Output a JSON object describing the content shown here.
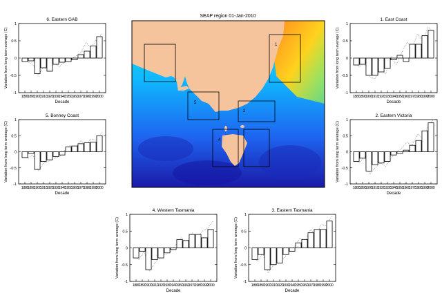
{
  "figure": {
    "map_title": "SEAP region 01-Jan-2010"
  },
  "map_labels": [
    "1",
    "2",
    "4",
    "5"
  ],
  "colors": {
    "bar_fill": "#ffffff",
    "bar_stroke": "#000000",
    "dotted": "#888888",
    "land": "#f6c49c",
    "ocean_deep": "#1a1aa8",
    "ocean_mid": "#1e90ff",
    "ocean_shallow": "#21e0c8"
  },
  "chart_data": [
    {
      "type": "bar",
      "title": "6. Eastern GAB",
      "xlabel": "Decade",
      "ylabel": "Variation from long term average (C)",
      "ylim": [
        -1,
        1
      ],
      "yticks": [
        "-1",
        "-0.5",
        "0",
        "0.5",
        "1"
      ],
      "categories": [
        "1880",
        "1890",
        "1900",
        "1910",
        "1920",
        "1930",
        "1940",
        "1950",
        "1960",
        "1970",
        "1980",
        "1990",
        "2000"
      ],
      "values": [
        -0.1,
        -0.08,
        -0.45,
        -0.28,
        -0.38,
        -0.18,
        -0.12,
        -0.1,
        -0.05,
        0.1,
        0.2,
        0.35,
        0.62
      ],
      "dotted": [
        -0.05,
        -0.1,
        -0.2,
        -0.5,
        -0.25,
        -0.4,
        -0.15,
        -0.25,
        -0.1,
        -0.05,
        0.05,
        0.15,
        0.45,
        0.3,
        0.55,
        0.7
      ]
    },
    {
      "type": "bar",
      "title": "5. Bonney Coast",
      "xlabel": "Decade",
      "ylabel": "Variation from long term average (C)",
      "ylim": [
        -1,
        1
      ],
      "yticks": [
        "-1",
        "-0.5",
        "0",
        "0.5",
        "1"
      ],
      "categories": [
        "1880",
        "1890",
        "1900",
        "1910",
        "1920",
        "1930",
        "1940",
        "1950",
        "1960",
        "1970",
        "1980",
        "1990",
        "2000"
      ],
      "values": [
        -0.18,
        -0.05,
        -0.55,
        -0.3,
        -0.25,
        -0.15,
        -0.1,
        0.15,
        0.18,
        0.25,
        0.28,
        0.3,
        0.5
      ],
      "dotted": [
        -0.1,
        -0.2,
        -0.1,
        -0.6,
        -0.35,
        -0.3,
        -0.2,
        -0.15,
        0.05,
        0.2,
        0.1,
        0.35,
        0.2,
        0.4,
        0.35,
        0.6
      ]
    },
    {
      "type": "bar",
      "title": "1. East Coast",
      "xlabel": "Decade",
      "ylabel": "Variation from long term average (C)",
      "ylim": [
        -1,
        1
      ],
      "yticks": [
        "-1",
        "-0.5",
        "0",
        "0.5",
        "1"
      ],
      "categories": [
        "1880",
        "1890",
        "1900",
        "1910",
        "1920",
        "1930",
        "1940",
        "1950",
        "1960",
        "1970",
        "1980",
        "1990",
        "2000"
      ],
      "values": [
        -0.2,
        -0.18,
        -0.5,
        -0.5,
        -0.4,
        -0.3,
        -0.05,
        0.08,
        -0.1,
        0.4,
        0.4,
        0.65,
        0.8
      ],
      "dotted": [
        -0.1,
        -0.25,
        -0.15,
        -0.55,
        -0.6,
        -0.35,
        -0.45,
        0.05,
        -0.2,
        0.15,
        0.45,
        0.3,
        0.7,
        0.5,
        0.9,
        0.75
      ]
    },
    {
      "type": "bar",
      "title": "2. Eastern Victoria",
      "xlabel": "Decade",
      "ylabel": "Variation from long term average (C)",
      "ylim": [
        -1,
        1
      ],
      "yticks": [
        "-1",
        "-0.5",
        "0",
        "0.5",
        "1"
      ],
      "categories": [
        "1880",
        "1890",
        "1900",
        "1910",
        "1920",
        "1930",
        "1940",
        "1950",
        "1960",
        "1970",
        "1980",
        "1990",
        "2000"
      ],
      "values": [
        -0.3,
        -0.2,
        -0.6,
        -0.4,
        -0.35,
        -0.3,
        -0.1,
        -0.05,
        0.05,
        0.2,
        0.35,
        0.65,
        0.9
      ],
      "dotted": [
        -0.2,
        -0.35,
        -0.15,
        -0.7,
        -0.5,
        -0.35,
        -0.45,
        -0.2,
        0.0,
        0.1,
        0.3,
        0.2,
        0.55,
        0.4,
        0.8,
        1.0
      ]
    },
    {
      "type": "bar",
      "title": "4. Western Tasmania",
      "xlabel": "Decade",
      "ylabel": "Variation from long term average (C)",
      "ylim": [
        -1,
        1
      ],
      "yticks": [
        "-1",
        "-0.5",
        "0",
        "0.5",
        "1"
      ],
      "categories": [
        "1880",
        "1890",
        "1900",
        "1910",
        "1920",
        "1930",
        "1940",
        "1950",
        "1960",
        "1970",
        "1980",
        "1990",
        "2000"
      ],
      "values": [
        -0.3,
        -0.1,
        -0.65,
        -0.35,
        -0.3,
        -0.15,
        -0.05,
        0.25,
        0.22,
        0.4,
        0.4,
        0.3,
        0.55
      ],
      "dotted": [
        -0.2,
        -0.35,
        -0.1,
        -0.7,
        -0.45,
        -0.3,
        -0.2,
        -0.1,
        0.1,
        0.3,
        0.15,
        0.45,
        0.3,
        0.5,
        0.6,
        0.8
      ]
    },
    {
      "type": "bar",
      "title": "3. Eastern Tasmania",
      "xlabel": "Decade",
      "ylabel": "Variation from long term average (C)",
      "ylim": [
        -1,
        1
      ],
      "yticks": [
        "-1",
        "-0.5",
        "0",
        "0.5",
        "1"
      ],
      "categories": [
        "1880",
        "1890",
        "1900",
        "1910",
        "1920",
        "1930",
        "1940",
        "1950",
        "1960",
        "1970",
        "1980",
        "1990",
        "2000"
      ],
      "values": [
        -0.35,
        -0.2,
        -0.65,
        -0.5,
        -0.45,
        -0.2,
        -0.1,
        0.15,
        0.25,
        0.45,
        0.55,
        0.55,
        0.8
      ],
      "dotted": [
        -0.2,
        -0.4,
        -0.15,
        -0.75,
        -0.5,
        -0.45,
        -0.3,
        -0.1,
        0.05,
        0.3,
        0.2,
        0.55,
        0.4,
        0.7,
        0.65,
        0.95
      ]
    }
  ]
}
